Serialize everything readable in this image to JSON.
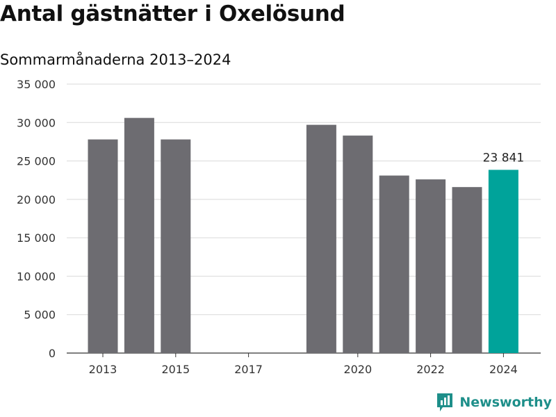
{
  "title": "Antal gästnätter i Oxelösund",
  "subtitle": "Sommarmånaderna 2013–2024",
  "brand": {
    "name": "Newsworthy",
    "icon": "newsworthy-logo-icon"
  },
  "colors": {
    "bar": "#6d6c71",
    "highlight": "#00a39a",
    "grid": "#d9d9d9",
    "axis": "#333333"
  },
  "chart_data": {
    "type": "bar",
    "title": "Antal gästnätter i Oxelösund",
    "subtitle": "Sommarmånaderna 2013–2024",
    "xlabel": "",
    "ylabel": "",
    "categories": [
      "2013",
      "2014",
      "2015",
      "2016",
      "2017",
      "2018",
      "2019",
      "2020",
      "2021",
      "2022",
      "2023",
      "2024"
    ],
    "values": [
      27800,
      30600,
      27800,
      null,
      null,
      null,
      29700,
      28300,
      23100,
      22600,
      21600,
      23841
    ],
    "ylim": [
      0,
      35000
    ],
    "yticks": [
      0,
      5000,
      10000,
      15000,
      20000,
      25000,
      30000,
      35000
    ],
    "ytick_labels": [
      "0",
      "5 000",
      "10 000",
      "15 000",
      "20 000",
      "25 000",
      "30 000",
      "35 000"
    ],
    "xtick_labels": [
      "2013",
      "2015",
      "2017",
      "2020",
      "2022",
      "2024"
    ],
    "highlight_category": "2024",
    "annotations": [
      {
        "category": "2024",
        "text": "23 841"
      }
    ],
    "grid": true,
    "legend": "none"
  }
}
